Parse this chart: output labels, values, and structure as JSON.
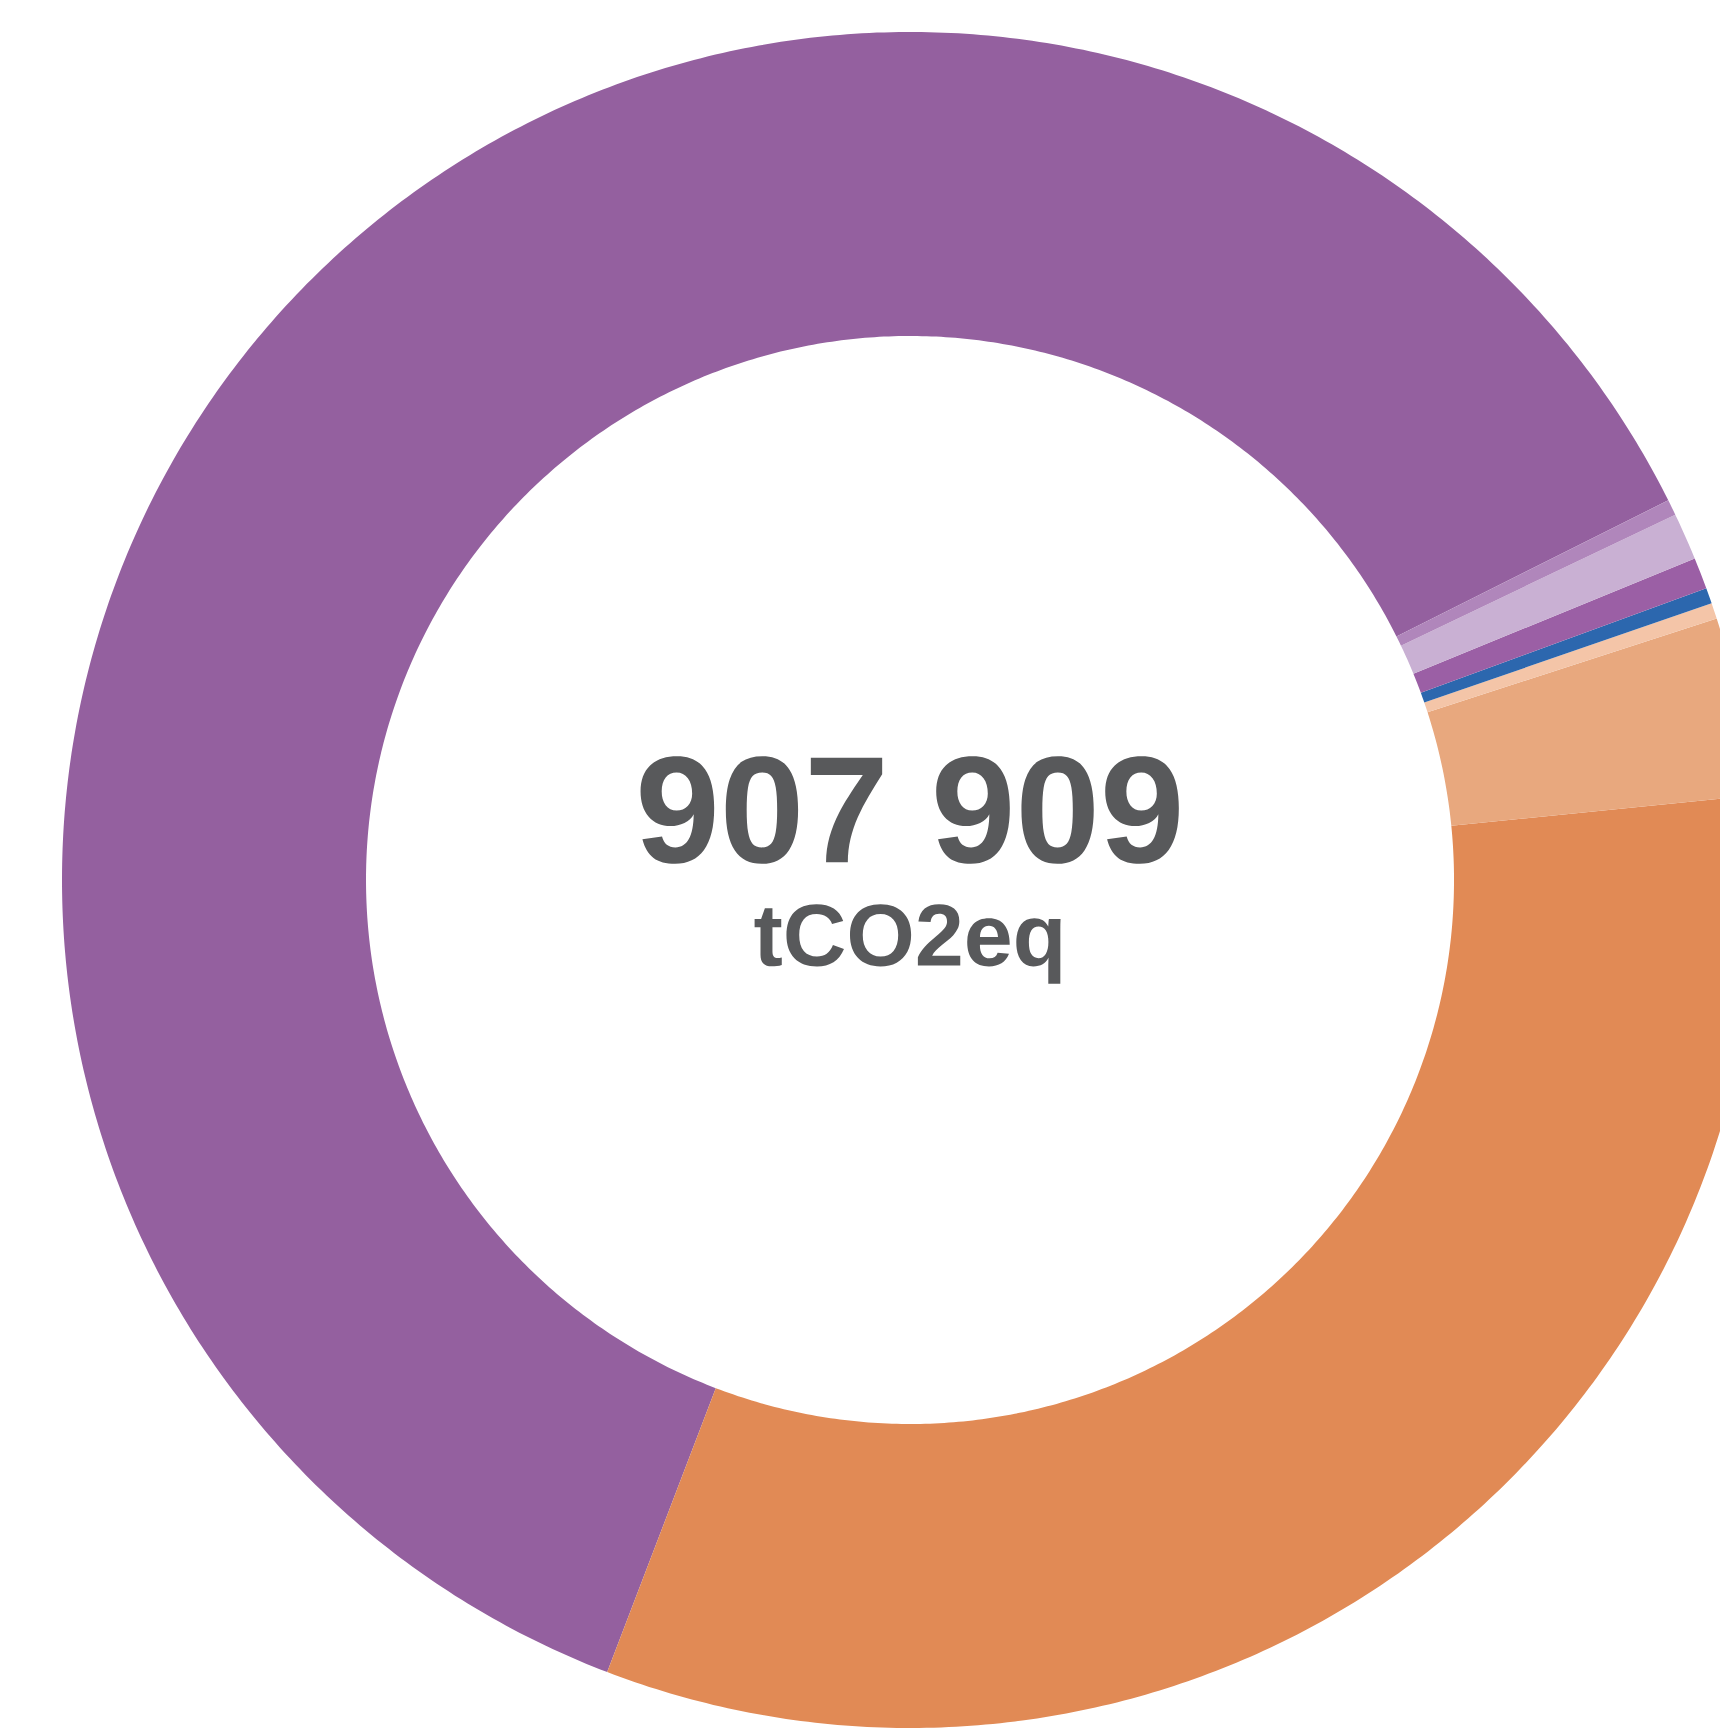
{
  "chart_data": {
    "type": "donut",
    "title": "907 909",
    "subtitle": "tCO2eq",
    "categories": [
      null,
      null,
      null,
      null,
      null,
      null,
      null,
      null
    ],
    "values": [
      61.8,
      32.4,
      3.4,
      0.3,
      0.3,
      0.6,
      0.9,
      0.3
    ],
    "colors": [
      "#94609f",
      "#e18a55",
      "#e8a87e",
      "#f4c5a8",
      "#2c67ae",
      "#9b5fa5",
      "#c9b0d3",
      "#b086bb"
    ]
  }
}
